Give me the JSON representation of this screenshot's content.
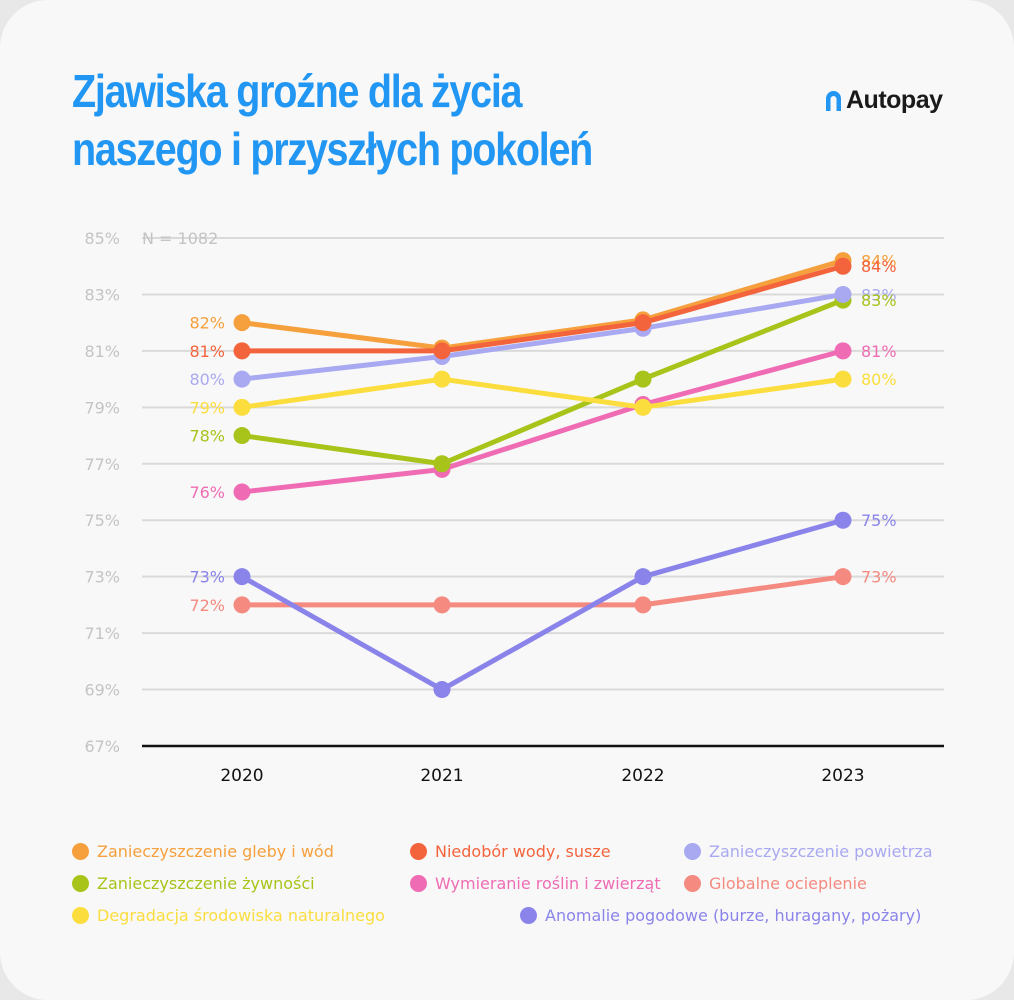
{
  "header": {
    "title": "Zjawiska groźne dla życia naszego i przyszłych pokoleń",
    "brand": "Autopay",
    "brand_icon": "autopay-logo-icon",
    "brand_color": "#2196f3"
  },
  "chart_data": {
    "type": "line",
    "annotation": "N = 1082",
    "categories": [
      "2020",
      "2021",
      "2022",
      "2023"
    ],
    "ylim": [
      67,
      85
    ],
    "yticks": [
      67,
      69,
      71,
      73,
      75,
      77,
      79,
      81,
      83,
      85
    ],
    "ytick_labels": [
      "67%",
      "69%",
      "71%",
      "73%",
      "75%",
      "77%",
      "79%",
      "81%",
      "83%",
      "85%"
    ],
    "grid": true,
    "legend_position": "bottom",
    "series": [
      {
        "name": "Zanieczyszczenie gleby i wód",
        "color": "#f5a03c",
        "values": [
          82,
          81.1,
          82.1,
          84.2
        ],
        "start_label": "82%",
        "end_label": "84%"
      },
      {
        "name": "Niedobór wody, susze",
        "color": "#f4643c",
        "values": [
          81,
          81,
          82,
          84
        ],
        "start_label": "81%",
        "end_label": "84%"
      },
      {
        "name": "Zanieczyszczenie powietrza",
        "color": "#a9a9f2",
        "values": [
          80,
          80.8,
          81.8,
          83
        ],
        "start_label": "80%",
        "end_label": "83%"
      },
      {
        "name": "Zanieczyszczenie żywności",
        "color": "#a8c41a",
        "values": [
          78,
          77,
          80,
          82.8
        ],
        "start_label": "78%",
        "end_label": "83%"
      },
      {
        "name": "Wymieranie roślin i zwierząt",
        "color": "#ef6cb4",
        "values": [
          76,
          76.8,
          79.1,
          81
        ],
        "start_label": "76%",
        "end_label": "81%"
      },
      {
        "name": "Globalne ocieplenie",
        "color": "#f48a80",
        "values": [
          72,
          72,
          72,
          73
        ],
        "start_label": "72%",
        "end_label": "73%"
      },
      {
        "name": "Degradacja środowiska naturalnego",
        "color": "#fbdd3e",
        "values": [
          79,
          80,
          79,
          80
        ],
        "start_label": "79%",
        "end_label": "80%"
      },
      {
        "name": "Anomalie pogodowe (burze, huragany, pożary)",
        "color": "#8a84ea",
        "values": [
          73,
          69,
          73,
          75
        ],
        "start_label": "73%",
        "end_label": "75%"
      }
    ]
  }
}
